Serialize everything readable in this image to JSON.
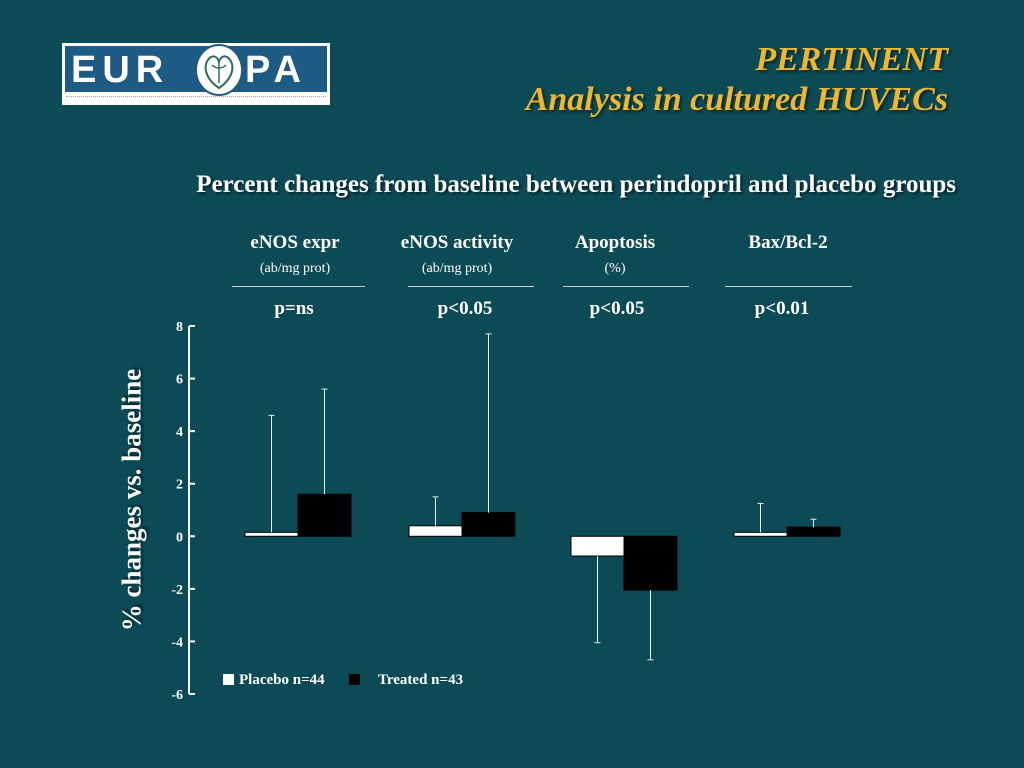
{
  "title": {
    "line1": "PERTINENT",
    "line2": "Analysis in cultured HUVECs",
    "color": "#f0b62e"
  },
  "logo": {
    "left": "EUR",
    "right": "PA"
  },
  "chart_data": {
    "type": "bar",
    "title": "Percent changes from baseline between perindopril and placebo groups",
    "ylabel": "% changes vs. baseline",
    "xlabel": "",
    "ylim": [
      -6,
      8
    ],
    "yticks": [
      8,
      6,
      4,
      2,
      0,
      -2,
      -4,
      -6
    ],
    "grid": false,
    "legend_position": "bottom-left",
    "categories": [
      "eNOS expr",
      "eNOS activity",
      "Apoptosis",
      "Bax/Bcl-2"
    ],
    "units": [
      "(ab/mg prot)",
      "(ab/mg prot)",
      "(%)",
      ""
    ],
    "p_values": [
      "p=ns",
      "p<0.05",
      "p<0.05",
      "p<0.01"
    ],
    "series": [
      {
        "name": "Placebo n=44",
        "color": "#ffffff",
        "values": [
          0.15,
          0.4,
          -0.75,
          0.15
        ],
        "error_upper": [
          4.6,
          1.5,
          -4.05,
          1.25
        ]
      },
      {
        "name": "Treated n=43",
        "color": "#000000",
        "values": [
          1.6,
          0.9,
          -2.05,
          0.35
        ],
        "error_upper": [
          5.6,
          7.7,
          -4.7,
          0.65
        ]
      }
    ]
  }
}
